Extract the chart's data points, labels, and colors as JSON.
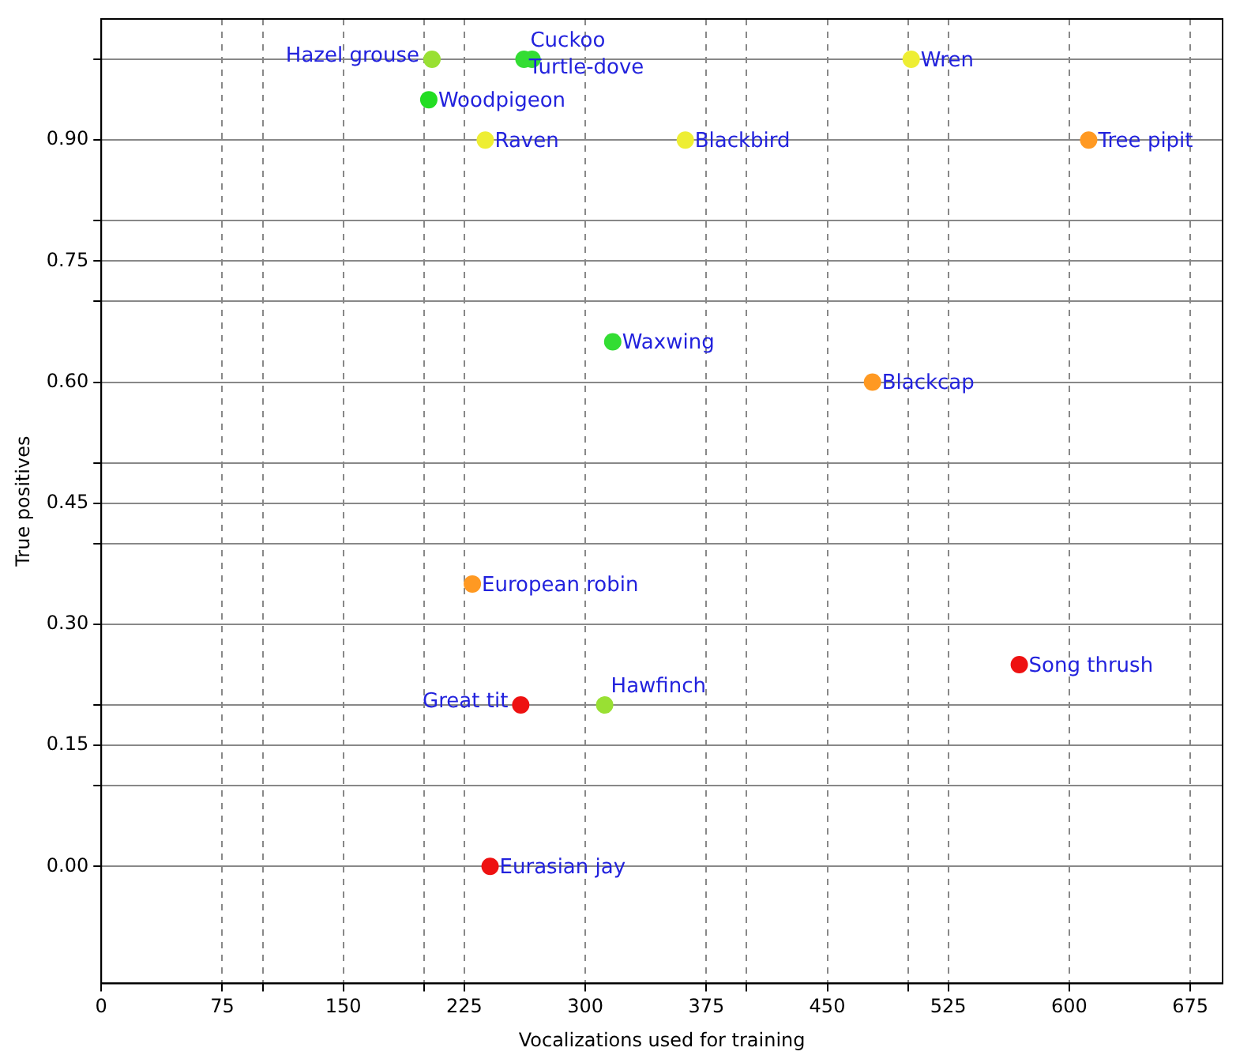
{
  "chart_data": {
    "type": "scatter",
    "xlabel": "Vocalizations used for training",
    "ylabel": "True positives",
    "x": [
      205,
      262,
      267,
      502,
      203,
      238,
      362,
      612,
      317,
      478,
      230,
      569,
      260,
      312,
      241
    ],
    "values": [
      1.0,
      1.0,
      1.0,
      1.0,
      0.95,
      0.9,
      0.9,
      0.9,
      0.65,
      0.6,
      0.35,
      0.25,
      0.2,
      0.2,
      0.0
    ],
    "colors": [
      "#99e033",
      "#33dd33",
      "#33dd33",
      "#eeee33",
      "#22dd22",
      "#eeee33",
      "#eeee33",
      "#ff9922",
      "#33dd33",
      "#ff9922",
      "#ff9922",
      "#ee1111",
      "#ee1111",
      "#99e033",
      "#ee1111"
    ],
    "annotations": [
      {
        "text": "Hazel grouse",
        "x": 205,
        "y": 1.0
      },
      {
        "text": "Cuckoo",
        "x": 262,
        "y": 1.0
      },
      {
        "text": "Turtle-dove",
        "x": 267,
        "y": 1.0
      },
      {
        "text": "Wren",
        "x": 502,
        "y": 1.0
      },
      {
        "text": "Woodpigeon",
        "x": 203,
        "y": 0.95
      },
      {
        "text": "Raven",
        "x": 238,
        "y": 0.9
      },
      {
        "text": "Blackbird",
        "x": 362,
        "y": 0.9
      },
      {
        "text": "Tree pipit",
        "x": 612,
        "y": 0.9
      },
      {
        "text": "Waxwing",
        "x": 317,
        "y": 0.65
      },
      {
        "text": "Blackcap",
        "x": 478,
        "y": 0.6
      },
      {
        "text": "European robin",
        "x": 230,
        "y": 0.35
      },
      {
        "text": "Song thrush",
        "x": 569,
        "y": 0.25
      },
      {
        "text": "Great tit",
        "x": 260,
        "y": 0.2
      },
      {
        "text": "Hawfinch",
        "x": 312,
        "y": 0.2
      },
      {
        "text": "Eurasian jay",
        "x": 241,
        "y": 0.0
      }
    ],
    "xlim": [
      0,
      695
    ],
    "ylim": [
      -0.145,
      1.05
    ],
    "xticks": [
      0,
      75,
      {
        "value": 100,
        "label": null
      },
      150,
      {
        "value": 200,
        "label": null
      },
      225,
      {
        "value": 300,
        "label": "300"
      },
      375,
      {
        "value": 400,
        "label": null
      },
      450,
      {
        "value": 500,
        "label": null
      },
      525,
      600,
      675
    ],
    "yticks": [
      {
        "value": 0,
        "label": "0.00"
      },
      {
        "value": 0.1,
        "label": null
      },
      0.15,
      {
        "value": 0.2,
        "label": null
      },
      {
        "value": 0.3,
        "label": "0.30"
      },
      {
        "value": 0.4,
        "label": null
      },
      0.45,
      {
        "value": 0.5,
        "label": null
      },
      {
        "value": 0.6,
        "label": "0.60"
      },
      {
        "value": 0.7,
        "label": null
      },
      0.75,
      {
        "value": 0.8,
        "label": null
      },
      {
        "value": 0.9,
        "label": "0.90"
      },
      {
        "value": 1.0,
        "label": null
      }
    ],
    "grid": true,
    "legend": false,
    "marker": "circle"
  }
}
